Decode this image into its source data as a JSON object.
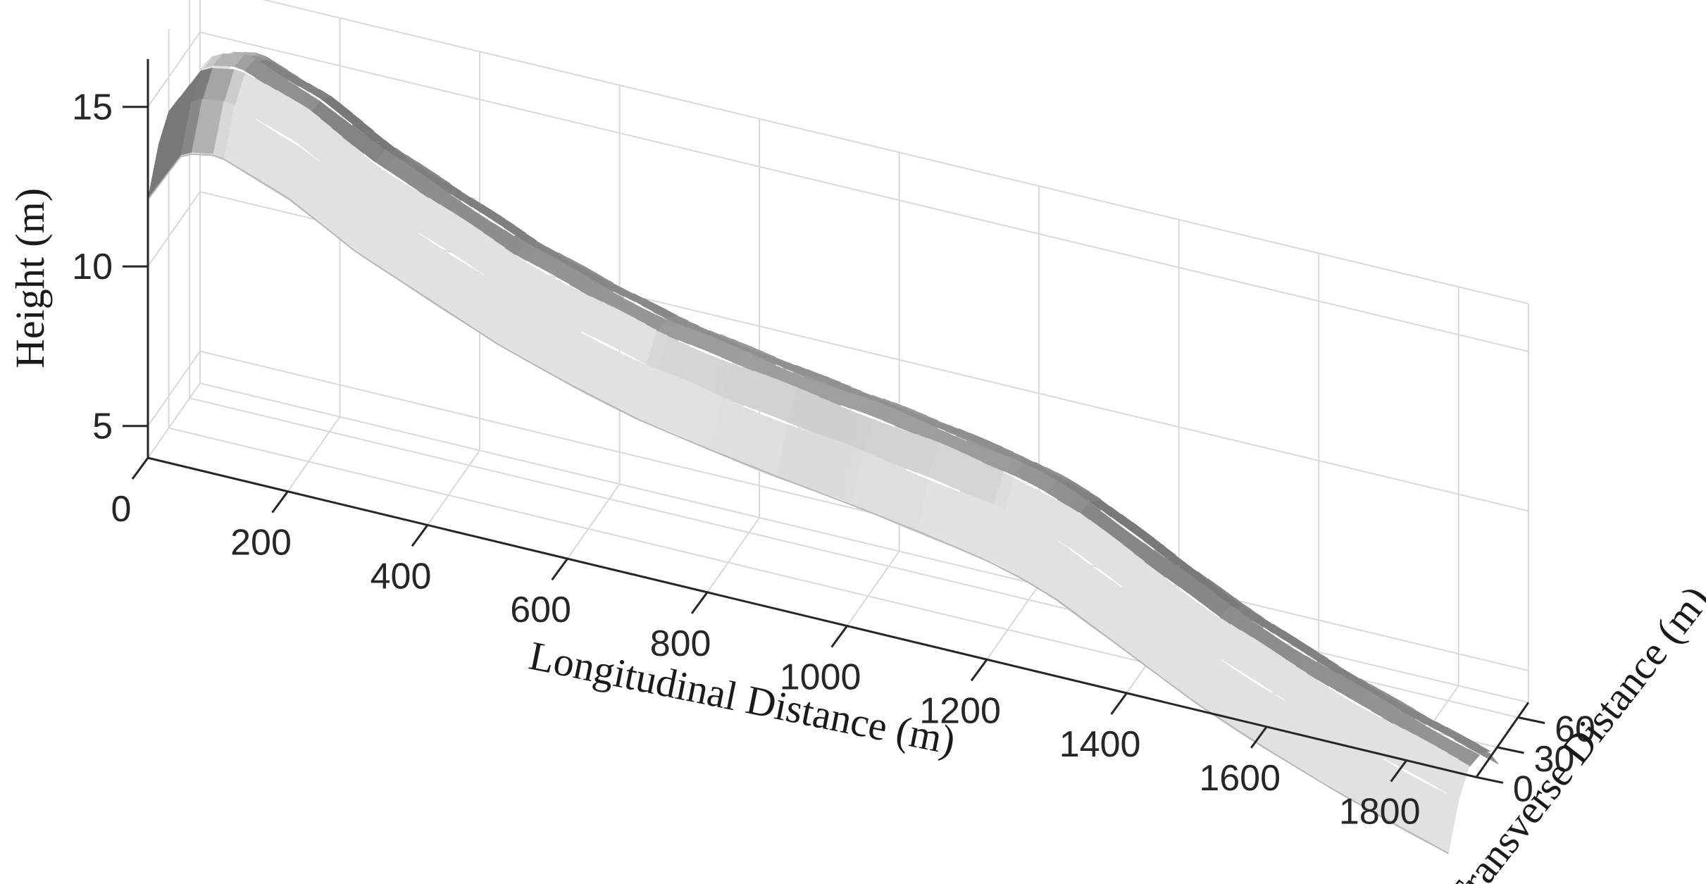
{
  "chart_data": {
    "type": "surface-3d",
    "title": "",
    "xlabel": "Longitudinal Distance (m)",
    "ylabel": "Transverse Distance (m)",
    "zlabel": "Height (m)",
    "xlim": [
      0,
      1900
    ],
    "ylim": [
      0,
      75
    ],
    "zlim": [
      4,
      16.5
    ],
    "xticks": [
      "0",
      "200",
      "400",
      "600",
      "800",
      "1000",
      "1200",
      "1400",
      "1600",
      "1800"
    ],
    "yticks": [
      "0",
      "30",
      "60"
    ],
    "zticks": [
      "5",
      "10",
      "15"
    ],
    "grid": true,
    "surface_color": "#a6a6a6",
    "profile": {
      "x": [
        0,
        50,
        100,
        200,
        300,
        400,
        500,
        600,
        700,
        800,
        900,
        1000,
        1100,
        1200,
        1250,
        1300,
        1400,
        1500,
        1600,
        1700,
        1800,
        1860
      ],
      "crest_height": [
        13.9,
        15.6,
        15.8,
        15.0,
        13.8,
        12.9,
        12.0,
        11.3,
        10.7,
        10.3,
        9.95,
        9.65,
        9.3,
        8.9,
        8.6,
        8.2,
        7.1,
        6.0,
        5.1,
        4.3,
        3.6,
        3.2
      ],
      "transverse": [
        0,
        15,
        30,
        45,
        60,
        72
      ],
      "height_offset": [
        -1.8,
        -0.6,
        0.0,
        -0.1,
        -0.5,
        -1.2
      ]
    }
  }
}
